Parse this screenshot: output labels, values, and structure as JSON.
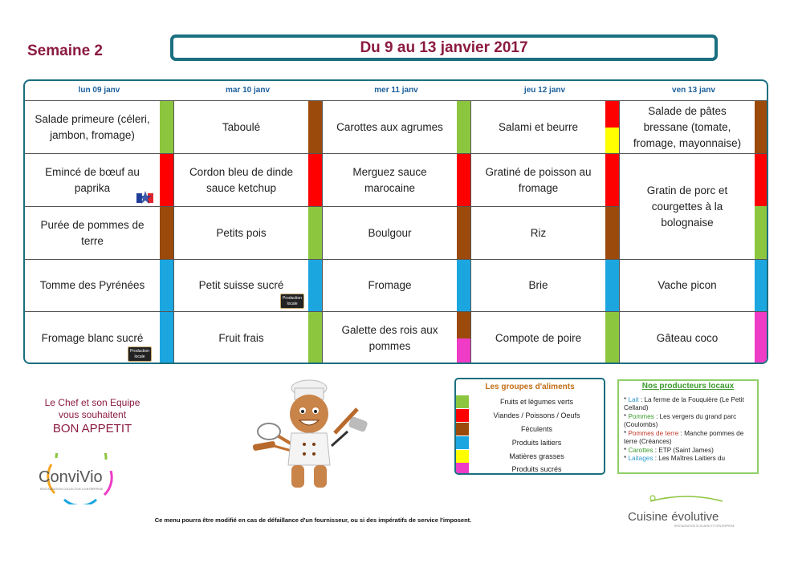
{
  "week_label": "Semaine 2",
  "date_range": "Du 9 au 13 janvier 2017",
  "colors": {
    "fruits_legumes": "#8cc63f",
    "viandes": "#ff0000",
    "feculents": "#9b4a0c",
    "laitiers": "#1ba6e0",
    "matieres_grasses": "#ffff00",
    "sucres": "#ee3cc6",
    "border": "#1b6f80"
  },
  "days": [
    {
      "label": "lun 09 janv"
    },
    {
      "label": "mar 10 janv"
    },
    {
      "label": "mer 11 janv"
    },
    {
      "label": "jeu 12 janv"
    },
    {
      "label": "ven 13 janv"
    }
  ],
  "menu": {
    "mon": [
      "Salade primeure (céleri, jambon, fromage)",
      "Emincé de bœuf au paprika",
      "Purée de pommes de terre",
      "Tomme des Pyrénées",
      "Fromage blanc sucré"
    ],
    "tue": [
      "Taboulé",
      "Cordon bleu de dinde sauce ketchup",
      "Petits pois",
      "Petit suisse sucré",
      "Fruit frais"
    ],
    "wed": [
      "Carottes aux agrumes",
      "Merguez sauce marocaine",
      "Boulgour",
      "Fromage",
      "Galette des rois aux pommes"
    ],
    "thu": [
      "Salami et beurre",
      "Gratiné de poisson au fromage",
      "Riz",
      "Brie",
      "Compote de poire"
    ],
    "fri": [
      "Salade de pâtes bressane (tomate, fromage, mayonnaise)",
      "Gratin de porc et courgettes à la bolognaise",
      "Vache picon",
      "Gâteau coco"
    ]
  },
  "badge_text": "Production locale",
  "chef_message": {
    "line1": "Le Chef et son Equipe",
    "line2": "vous souhaitent",
    "line3": "BON APPETIT"
  },
  "logo_convivio": {
    "name": "ConviVio",
    "tagline": "RESTAURATION COLLECTIVE & ENTREPRISE"
  },
  "legend": {
    "title": "Les groupes d'aliments",
    "items": [
      {
        "label": "Fruits et légumes verts",
        "color": "#8cc63f"
      },
      {
        "label": "Viandes / Poissons / Oeufs",
        "color": "#ff0000"
      },
      {
        "label": "Féculents",
        "color": "#9b4a0c"
      },
      {
        "label": "Produits laitiers",
        "color": "#1ba6e0"
      },
      {
        "label": "Matières grasses",
        "color": "#ffff00"
      },
      {
        "label": "Produits sucrés",
        "color": "#ee3cc6"
      }
    ]
  },
  "producers": {
    "title": "Nos producteurs locaux",
    "items": [
      {
        "key": "Lait",
        "text": ": La ferme de la Fouquière (Le Petit Celland)"
      },
      {
        "key": "Pommes",
        "text": ": Les vergers du grand parc (Coulombs)"
      },
      {
        "key": "Pommes de terre",
        "text": ": Manche pommes de terre (Créances)"
      },
      {
        "key": "Carottes",
        "text": ": ETP (Saint James)"
      },
      {
        "key": "Laitages",
        "text": ": Les Maîtres Laitiers du"
      }
    ]
  },
  "notice": "Ce menu pourra être modifié en cas de défaillance d'un fournisseur, ou si des impératifs de service l'imposent.",
  "logo_cuisine": {
    "name": "Cuisine évolutive",
    "tagline": "RESTAURATION SCOLAIRE ET D'ENTREPRISE"
  }
}
